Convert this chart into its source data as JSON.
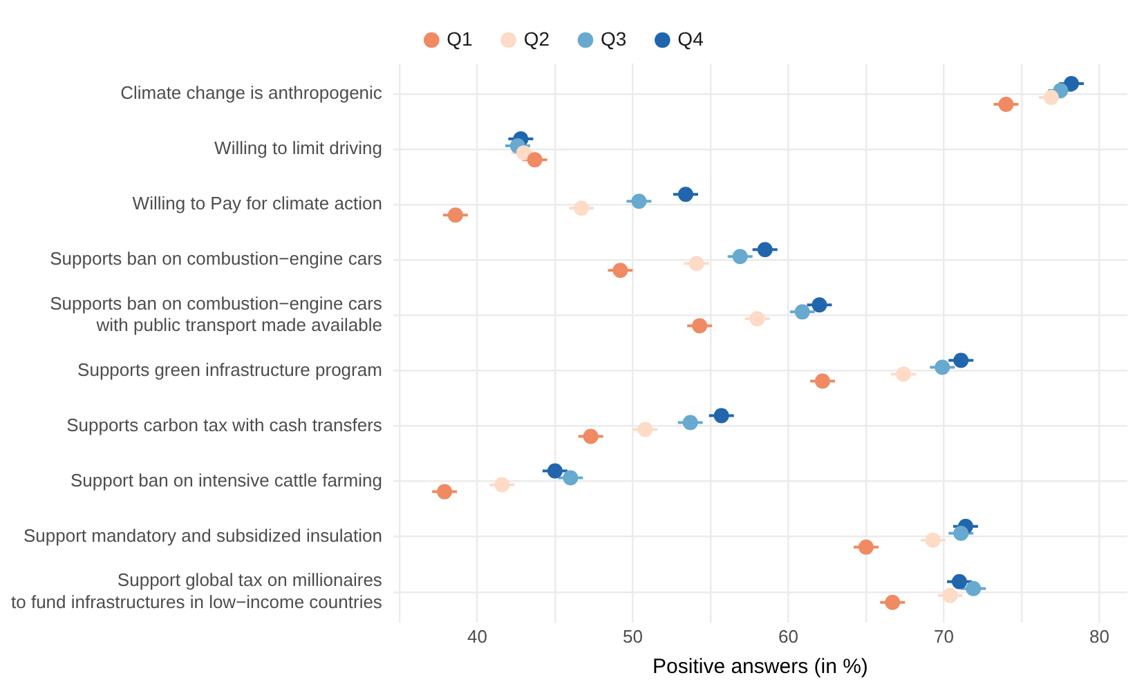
{
  "chart_data": {
    "type": "scatter",
    "orientation": "horizontal",
    "xlabel": "Positive answers (in %)",
    "categories": [
      "Climate change is anthropogenic",
      "Willing to limit driving",
      "Willing to Pay for climate action",
      "Supports ban on combustion−engine cars",
      "Supports ban on combustion−engine cars\nwith public transport made available",
      "Supports green infrastructure program",
      "Supports carbon tax with cash transfers",
      "Support ban on intensive cattle farming",
      "Support mandatory and subsidized insulation",
      "Support global tax on millionaires\nto fund infrastructures in low−income countries"
    ],
    "series": [
      {
        "name": "Q1",
        "color": "#ef8a62",
        "values": [
          74.0,
          43.7,
          38.6,
          49.2,
          54.3,
          62.2,
          47.3,
          37.9,
          65.0,
          66.7
        ],
        "errors": [
          0.8,
          0.8,
          0.8,
          0.8,
          0.8,
          0.8,
          0.8,
          0.8,
          0.8,
          0.8
        ]
      },
      {
        "name": "Q2",
        "color": "#fddbc7",
        "values": [
          76.9,
          43.0,
          46.7,
          54.1,
          58.0,
          67.4,
          50.8,
          41.6,
          69.3,
          70.4
        ],
        "errors": [
          0.8,
          0.8,
          0.8,
          0.8,
          0.8,
          0.8,
          0.8,
          0.8,
          0.8,
          0.8
        ]
      },
      {
        "name": "Q3",
        "color": "#67a9cf",
        "values": [
          77.5,
          42.6,
          50.4,
          56.9,
          60.9,
          69.9,
          53.7,
          46.0,
          71.1,
          71.9
        ],
        "errors": [
          0.8,
          0.8,
          0.8,
          0.8,
          0.8,
          0.8,
          0.8,
          0.8,
          0.8,
          0.8
        ]
      },
      {
        "name": "Q4",
        "color": "#2166ac",
        "values": [
          78.2,
          42.8,
          53.4,
          58.5,
          62.0,
          71.1,
          55.7,
          45.0,
          71.4,
          71.0
        ],
        "errors": [
          0.8,
          0.8,
          0.8,
          0.8,
          0.8,
          0.8,
          0.8,
          0.8,
          0.8,
          0.8
        ]
      }
    ],
    "xlim": [
      34.6,
      81.8
    ],
    "xticks": [
      {
        "value": 35,
        "label": null
      },
      40,
      {
        "value": 45,
        "label": null
      },
      50,
      {
        "value": 55,
        "label": null
      },
      60,
      {
        "value": 65,
        "label": null
      },
      70,
      {
        "value": 75,
        "label": null
      },
      80
    ],
    "grid": true,
    "legend": "top",
    "marker": "circle"
  }
}
